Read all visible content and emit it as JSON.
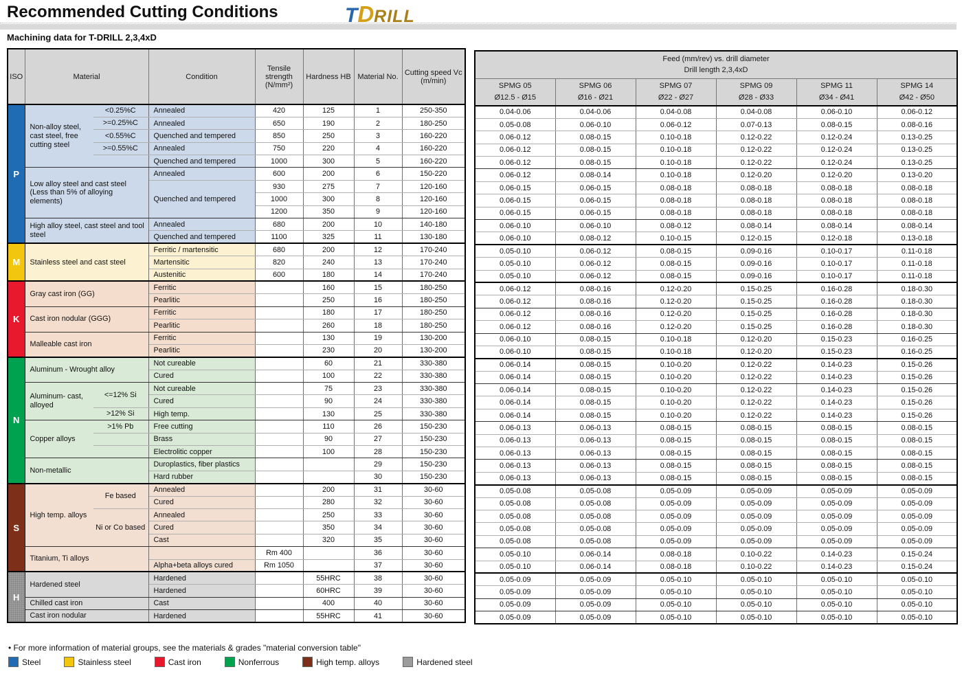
{
  "header": {
    "title": "Recommended Cutting Conditions",
    "subtitle": "Machining data for T-DRILL 2,3,4xD",
    "logo": {
      "part1": "T",
      "part2": "D",
      "part3": "RILL"
    }
  },
  "colors": {
    "P_steel": "#1f6cb4",
    "M_stainless": "#f2c50e",
    "K_cast_iron": "#e8192c",
    "N_nonferrous": "#00a14f",
    "S_high_temp": "#7e2f1a",
    "H_hardened": "#9c9c9c",
    "tint_P": "#ccd9ea",
    "tint_M": "#fcf2d2",
    "tint_K": "#f4ddcd",
    "tint_N": "#d9ead7",
    "tint_S": "#f2dfd2",
    "tint_H": "#d9d9d9"
  },
  "row_classes": {
    "5": "gb",
    "9": "gb",
    "11": "sb",
    "14": "sb",
    "16": "gb",
    "18": "gb",
    "20": "sb",
    "22": "gb",
    "25": "gb",
    "28": "gb",
    "30": "sb",
    "35": "gb",
    "37": "sb",
    "39": "gb",
    "40": "gb"
  },
  "left_table": {
    "columns": [
      "ISO",
      "Material",
      "Condition",
      "Tensile strength (N/mm²)",
      "Hardness HB",
      "Material No.",
      "Cutting speed Vc (m/min)"
    ],
    "rows": [
      [
        [
          "P",
          "iso iP bsb",
          1,
          11
        ],
        [
          "Non-alloy steel, cast steel, free cutting steel",
          "mat p mname bgb",
          1,
          5
        ],
        [
          "<0.25%C",
          "mat p sub"
        ],
        [
          "Annealed",
          "cond p"
        ],
        "420",
        "125",
        "1",
        "250-350"
      ],
      [
        [
          ">=0.25%C",
          "mat p sub"
        ],
        [
          "Annealed",
          "cond p"
        ],
        "650",
        "190",
        "2",
        "180-250"
      ],
      [
        [
          "<0.55%C",
          "mat p sub"
        ],
        [
          "Quenched and tempered",
          "cond p"
        ],
        "850",
        "250",
        "3",
        "160-220"
      ],
      [
        [
          ">=0.55%C",
          "mat p sub"
        ],
        [
          "Annealed",
          "cond p"
        ],
        "750",
        "220",
        "4",
        "160-220"
      ],
      [
        [
          "",
          "mat p sub"
        ],
        [
          "Quenched and tempered",
          "cond p"
        ],
        "1000",
        "300",
        "5",
        "160-220"
      ],
      [
        [
          "Low alloy steel and cast steel (Less than 5% of alloying elements)",
          "mat p bgb",
          2,
          4
        ],
        [
          "Annealed",
          "cond p"
        ],
        "600",
        "200",
        "6",
        "150-220"
      ],
      [
        [
          "Quenched and tempered",
          "cond p bgb",
          1,
          3
        ],
        "930",
        "275",
        "7",
        "120-160"
      ],
      [
        "1000",
        "300",
        "8",
        "120-160"
      ],
      [
        "1200",
        "350",
        "9",
        "120-160"
      ],
      [
        [
          "High alloy steel, cast steel and tool steel",
          "mat p bsb",
          2,
          2
        ],
        [
          "Annealed",
          "cond p"
        ],
        "680",
        "200",
        "10",
        "140-180"
      ],
      [
        [
          "Quenched and tempered",
          "cond p"
        ],
        "1100",
        "325",
        "11",
        "130-180"
      ],
      [
        [
          "M",
          "iso iM bsb",
          1,
          3
        ],
        [
          "Stainless steel and cast steel",
          "mat m bsb",
          2,
          3
        ],
        [
          "Ferritic / martensitic",
          "cond m"
        ],
        "680",
        "200",
        "12",
        "170-240"
      ],
      [
        [
          "Martensitic",
          "cond m"
        ],
        "820",
        "240",
        "13",
        "170-240"
      ],
      [
        [
          "Austenitic",
          "cond m"
        ],
        "600",
        "180",
        "14",
        "170-240"
      ],
      [
        [
          "K",
          "iso iK bsb",
          1,
          6
        ],
        [
          "Gray cast iron (GG)",
          "mat k bgb",
          2,
          2
        ],
        [
          "Ferritic",
          "cond k"
        ],
        "",
        "160",
        "15",
        "180-250"
      ],
      [
        [
          "Pearlitic",
          "cond k"
        ],
        "",
        "250",
        "16",
        "180-250"
      ],
      [
        [
          "Cast iron nodular (GGG)",
          "mat k bgb",
          2,
          2
        ],
        [
          "Ferritic",
          "cond k"
        ],
        "",
        "180",
        "17",
        "180-250"
      ],
      [
        [
          "Pearlitic",
          "cond k"
        ],
        "",
        "260",
        "18",
        "180-250"
      ],
      [
        [
          "Malleable cast iron",
          "mat k bsb",
          2,
          2
        ],
        [
          "Ferritic",
          "cond k"
        ],
        "",
        "130",
        "19",
        "130-200"
      ],
      [
        [
          "Pearlitic",
          "cond k"
        ],
        "",
        "230",
        "20",
        "130-200"
      ],
      [
        [
          "N",
          "iso iN bsb",
          1,
          10
        ],
        [
          "Aluminum - Wrought alloy",
          "mat n bgb",
          2,
          2
        ],
        [
          "Not cureable",
          "cond n"
        ],
        "",
        "60",
        "21",
        "330-380"
      ],
      [
        [
          "Cured",
          "cond n"
        ],
        "",
        "100",
        "22",
        "330-380"
      ],
      [
        [
          "Aluminum- cast, alloyed",
          "mat n mname bgb",
          1,
          3
        ],
        [
          "<=12% Si",
          "mat n sub",
          1,
          2
        ],
        [
          "Not cureable",
          "cond n"
        ],
        "",
        "75",
        "23",
        "330-380"
      ],
      [
        [
          "Cured",
          "cond n"
        ],
        "",
        "90",
        "24",
        "330-380"
      ],
      [
        [
          ">12% Si",
          "mat n sub"
        ],
        [
          "High temp.",
          "cond n"
        ],
        "",
        "130",
        "25",
        "330-380"
      ],
      [
        [
          "Copper alloys",
          "mat n mname bgb",
          1,
          3
        ],
        [
          ">1% Pb",
          "mat n sub"
        ],
        [
          "Free cutting",
          "cond n"
        ],
        "",
        "110",
        "26",
        "150-230"
      ],
      [
        [
          "",
          "mat n sub"
        ],
        [
          "Brass",
          "cond n"
        ],
        "",
        "90",
        "27",
        "150-230"
      ],
      [
        [
          "",
          "mat n sub"
        ],
        [
          "Electrolitic copper",
          "cond n"
        ],
        "",
        "100",
        "28",
        "150-230"
      ],
      [
        [
          "Non-metallic",
          "mat n bsb",
          2,
          2
        ],
        [
          "Duroplastics, fiber plastics",
          "cond n"
        ],
        "",
        "",
        "29",
        "150-230"
      ],
      [
        [
          "Hard rubber",
          "cond n"
        ],
        "",
        "",
        "30",
        "150-230"
      ],
      [
        [
          "S",
          "iso iS bsb",
          1,
          7
        ],
        [
          "High temp. alloys",
          "mat s mname bgb",
          1,
          5
        ],
        [
          "Fe based",
          "mat s sub",
          1,
          2
        ],
        [
          "Annealed",
          "cond s"
        ],
        "",
        "200",
        "31",
        "30-60"
      ],
      [
        [
          "Cured",
          "cond s"
        ],
        "",
        "280",
        "32",
        "30-60"
      ],
      [
        [
          "Ni or Co based",
          "mat s sub bgb",
          1,
          3
        ],
        [
          "Annealed",
          "cond s"
        ],
        "",
        "250",
        "33",
        "30-60"
      ],
      [
        [
          "Cured",
          "cond s"
        ],
        "",
        "350",
        "34",
        "30-60"
      ],
      [
        [
          "Cast",
          "cond s"
        ],
        "",
        "320",
        "35",
        "30-60"
      ],
      [
        [
          "Titanium, Ti alloys",
          "mat s bsb",
          2,
          2
        ],
        [
          "",
          "cond s"
        ],
        "Rm 400",
        "",
        "36",
        "30-60"
      ],
      [
        [
          "Alpha+beta alloys cured",
          "cond s"
        ],
        "Rm 1050",
        "",
        "37",
        "30-60"
      ],
      [
        [
          "H",
          "iso iH",
          1,
          4
        ],
        [
          "Hardened steel",
          "mat h bgb",
          2,
          2
        ],
        [
          "Hardened",
          "cond h"
        ],
        "",
        "55HRC",
        "38",
        "30-60"
      ],
      [
        [
          "Hardened",
          "cond h"
        ],
        "",
        "60HRC",
        "39",
        "30-60"
      ],
      [
        [
          "Chilled cast iron",
          "mat h",
          2,
          1
        ],
        [
          "Cast",
          "cond h"
        ],
        "",
        "400",
        "40",
        "30-60"
      ],
      [
        [
          "Cast iron nodular",
          "mat h",
          2,
          1
        ],
        [
          "Hardened",
          "cond h"
        ],
        "",
        "55HRC",
        "41",
        "30-60"
      ]
    ]
  },
  "right_table": {
    "header_line1": "Feed (mm/rev) vs. drill diameter",
    "header_line2": "Drill length 2,3,4xD",
    "columns": [
      {
        "name": "SPMG 05",
        "range": "Ø12.5 - Ø15"
      },
      {
        "name": "SPMG 06",
        "range": "Ø16 - Ø21"
      },
      {
        "name": "SPMG 07",
        "range": "Ø22 - Ø27"
      },
      {
        "name": "SPMG 09",
        "range": "Ø28 - Ø33"
      },
      {
        "name": "SPMG 11",
        "range": "Ø34 - Ø41"
      },
      {
        "name": "SPMG 14",
        "range": "Ø42 - Ø50"
      }
    ],
    "rows": [
      [
        "0.04-0.06",
        "0.04-0.06",
        "0.04-0.08",
        "0.04-0.08",
        "0.06-0.10",
        "0.06-0.12"
      ],
      [
        "0.05-0.08",
        "0.06-0.10",
        "0.06-0.12",
        "0.07-0.13",
        "0.08-0.15",
        "0.08-0.16"
      ],
      [
        "0.06-0.12",
        "0.08-0.15",
        "0.10-0.18",
        "0.12-0.22",
        "0.12-0.24",
        "0.13-0.25"
      ],
      [
        "0.06-0.12",
        "0.08-0.15",
        "0.10-0.18",
        "0.12-0.22",
        "0.12-0.24",
        "0.13-0.25"
      ],
      [
        "0.06-0.12",
        "0.08-0.15",
        "0.10-0.18",
        "0.12-0.22",
        "0.12-0.24",
        "0.13-0.25"
      ],
      [
        "0.06-0.12",
        "0.08-0.14",
        "0.10-0.18",
        "0.12-0.20",
        "0.12-0.20",
        "0.13-0.20"
      ],
      [
        "0.06-0.15",
        "0.06-0.15",
        "0.08-0.18",
        "0.08-0.18",
        "0.08-0.18",
        "0.08-0.18"
      ],
      [
        "0.06-0.15",
        "0.06-0.15",
        "0.08-0.18",
        "0.08-0.18",
        "0.08-0.18",
        "0.08-0.18"
      ],
      [
        "0.06-0.15",
        "0.06-0.15",
        "0.08-0.18",
        "0.08-0.18",
        "0.08-0.18",
        "0.08-0.18"
      ],
      [
        "0.06-0.10",
        "0.06-0.10",
        "0.08-0.12",
        "0.08-0.14",
        "0.08-0.14",
        "0.08-0.14"
      ],
      [
        "0.06-0.10",
        "0.08-0.12",
        "0.10-0.15",
        "0.12-0.15",
        "0.12-0.18",
        "0.13-0.18"
      ],
      [
        "0.05-0.10",
        "0.06-0.12",
        "0.08-0.15",
        "0.09-0.16",
        "0.10-0.17",
        "0.11-0.18"
      ],
      [
        "0.05-0.10",
        "0.06-0.12",
        "0.08-0.15",
        "0.09-0.16",
        "0.10-0.17",
        "0.11-0.18"
      ],
      [
        "0.05-0.10",
        "0.06-0.12",
        "0.08-0.15",
        "0.09-0.16",
        "0.10-0.17",
        "0.11-0.18"
      ],
      [
        "0.06-0.12",
        "0.08-0.16",
        "0.12-0.20",
        "0.15-0.25",
        "0.16-0.28",
        "0.18-0.30"
      ],
      [
        "0.06-0.12",
        "0.08-0.16",
        "0.12-0.20",
        "0.15-0.25",
        "0.16-0.28",
        "0.18-0.30"
      ],
      [
        "0.06-0.12",
        "0.08-0.16",
        "0.12-0.20",
        "0.15-0.25",
        "0.16-0.28",
        "0.18-0.30"
      ],
      [
        "0.06-0.12",
        "0.08-0.16",
        "0.12-0.20",
        "0.15-0.25",
        "0.16-0.28",
        "0.18-0.30"
      ],
      [
        "0.06-0.10",
        "0.08-0.15",
        "0.10-0.18",
        "0.12-0.20",
        "0.15-0.23",
        "0.16-0.25"
      ],
      [
        "0.06-0.10",
        "0.08-0.15",
        "0.10-0.18",
        "0.12-0.20",
        "0.15-0.23",
        "0.16-0.25"
      ],
      [
        "0.06-0.14",
        "0.08-0.15",
        "0.10-0.20",
        "0.12-0.22",
        "0.14-0.23",
        "0.15-0.26"
      ],
      [
        "0.06-0.14",
        "0.08-0.15",
        "0.10-0.20",
        "0.12-0.22",
        "0.14-0.23",
        "0.15-0.26"
      ],
      [
        "0.06-0.14",
        "0.08-0.15",
        "0.10-0.20",
        "0.12-0.22",
        "0.14-0.23",
        "0.15-0.26"
      ],
      [
        "0.06-0.14",
        "0.08-0.15",
        "0.10-0.20",
        "0.12-0.22",
        "0.14-0.23",
        "0.15-0.26"
      ],
      [
        "0.06-0.14",
        "0.08-0.15",
        "0.10-0.20",
        "0.12-0.22",
        "0.14-0.23",
        "0.15-0.26"
      ],
      [
        "0.06-0.13",
        "0.06-0.13",
        "0.08-0.15",
        "0.08-0.15",
        "0.08-0.15",
        "0.08-0.15"
      ],
      [
        "0.06-0.13",
        "0.06-0.13",
        "0.08-0.15",
        "0.08-0.15",
        "0.08-0.15",
        "0.08-0.15"
      ],
      [
        "0.06-0.13",
        "0.06-0.13",
        "0.08-0.15",
        "0.08-0.15",
        "0.08-0.15",
        "0.08-0.15"
      ],
      [
        "0.06-0.13",
        "0.06-0.13",
        "0.08-0.15",
        "0.08-0.15",
        "0.08-0.15",
        "0.08-0.15"
      ],
      [
        "0.06-0.13",
        "0.06-0.13",
        "0.08-0.15",
        "0.08-0.15",
        "0.08-0.15",
        "0.08-0.15"
      ],
      [
        "0.05-0.08",
        "0.05-0.08",
        "0.05-0.09",
        "0.05-0.09",
        "0.05-0.09",
        "0.05-0.09"
      ],
      [
        "0.05-0.08",
        "0.05-0.08",
        "0.05-0.09",
        "0.05-0.09",
        "0.05-0.09",
        "0.05-0.09"
      ],
      [
        "0.05-0.08",
        "0.05-0.08",
        "0.05-0.09",
        "0.05-0.09",
        "0.05-0.09",
        "0.05-0.09"
      ],
      [
        "0.05-0.08",
        "0.05-0.08",
        "0.05-0.09",
        "0.05-0.09",
        "0.05-0.09",
        "0.05-0.09"
      ],
      [
        "0.05-0.08",
        "0.05-0.08",
        "0.05-0.09",
        "0.05-0.09",
        "0.05-0.09",
        "0.05-0.09"
      ],
      [
        "0.05-0.10",
        "0.06-0.14",
        "0.08-0.18",
        "0.10-0.22",
        "0.14-0.23",
        "0.15-0.24"
      ],
      [
        "0.05-0.10",
        "0.06-0.14",
        "0.08-0.18",
        "0.10-0.22",
        "0.14-0.23",
        "0.15-0.24"
      ],
      [
        "0.05-0.09",
        "0.05-0.09",
        "0.05-0.10",
        "0.05-0.10",
        "0.05-0.10",
        "0.05-0.10"
      ],
      [
        "0.05-0.09",
        "0.05-0.09",
        "0.05-0.10",
        "0.05-0.10",
        "0.05-0.10",
        "0.05-0.10"
      ],
      [
        "0.05-0.09",
        "0.05-0.09",
        "0.05-0.10",
        "0.05-0.10",
        "0.05-0.10",
        "0.05-0.10"
      ],
      [
        "0.05-0.09",
        "0.05-0.09",
        "0.05-0.10",
        "0.05-0.10",
        "0.05-0.10",
        "0.05-0.10"
      ]
    ]
  },
  "footer": {
    "note": "• For more information of material groups, see the materials & grades \"material conversion table\"",
    "legend": [
      {
        "label": "Steel",
        "color": "#1f6cb4"
      },
      {
        "label": "Stainless steel",
        "color": "#f2c50e"
      },
      {
        "label": "Cast iron",
        "color": "#e8192c"
      },
      {
        "label": "Nonferrous",
        "color": "#00a14f"
      },
      {
        "label": "High temp. alloys",
        "color": "#7e2f1a"
      },
      {
        "label": "Hardened steel",
        "color": "#9c9c9c"
      }
    ]
  }
}
